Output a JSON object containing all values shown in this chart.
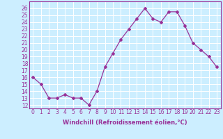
{
  "x": [
    0,
    1,
    2,
    3,
    4,
    5,
    6,
    7,
    8,
    9,
    10,
    11,
    12,
    13,
    14,
    15,
    16,
    17,
    18,
    19,
    20,
    21,
    22,
    23
  ],
  "y": [
    16,
    15,
    13,
    13,
    13.5,
    13,
    13,
    12,
    14,
    17.5,
    19.5,
    21.5,
    23,
    24.5,
    26,
    24.5,
    24,
    25.5,
    25.5,
    23.5,
    21,
    20,
    19,
    17.5
  ],
  "line_color": "#993399",
  "marker": "D",
  "marker_size": 2.0,
  "line_width": 0.9,
  "bg_color": "#cceeff",
  "grid_color": "#ffffff",
  "xlabel": "Windchill (Refroidissement éolien,°C)",
  "xlabel_fontsize": 6.0,
  "tick_fontsize": 5.5,
  "xlim": [
    -0.5,
    23.5
  ],
  "ylim": [
    11.5,
    27
  ],
  "yticks": [
    12,
    13,
    14,
    15,
    16,
    17,
    18,
    19,
    20,
    21,
    22,
    23,
    24,
    25,
    26
  ],
  "xticks": [
    0,
    1,
    2,
    3,
    4,
    5,
    6,
    7,
    8,
    9,
    10,
    11,
    12,
    13,
    14,
    15,
    16,
    17,
    18,
    19,
    20,
    21,
    22,
    23
  ]
}
